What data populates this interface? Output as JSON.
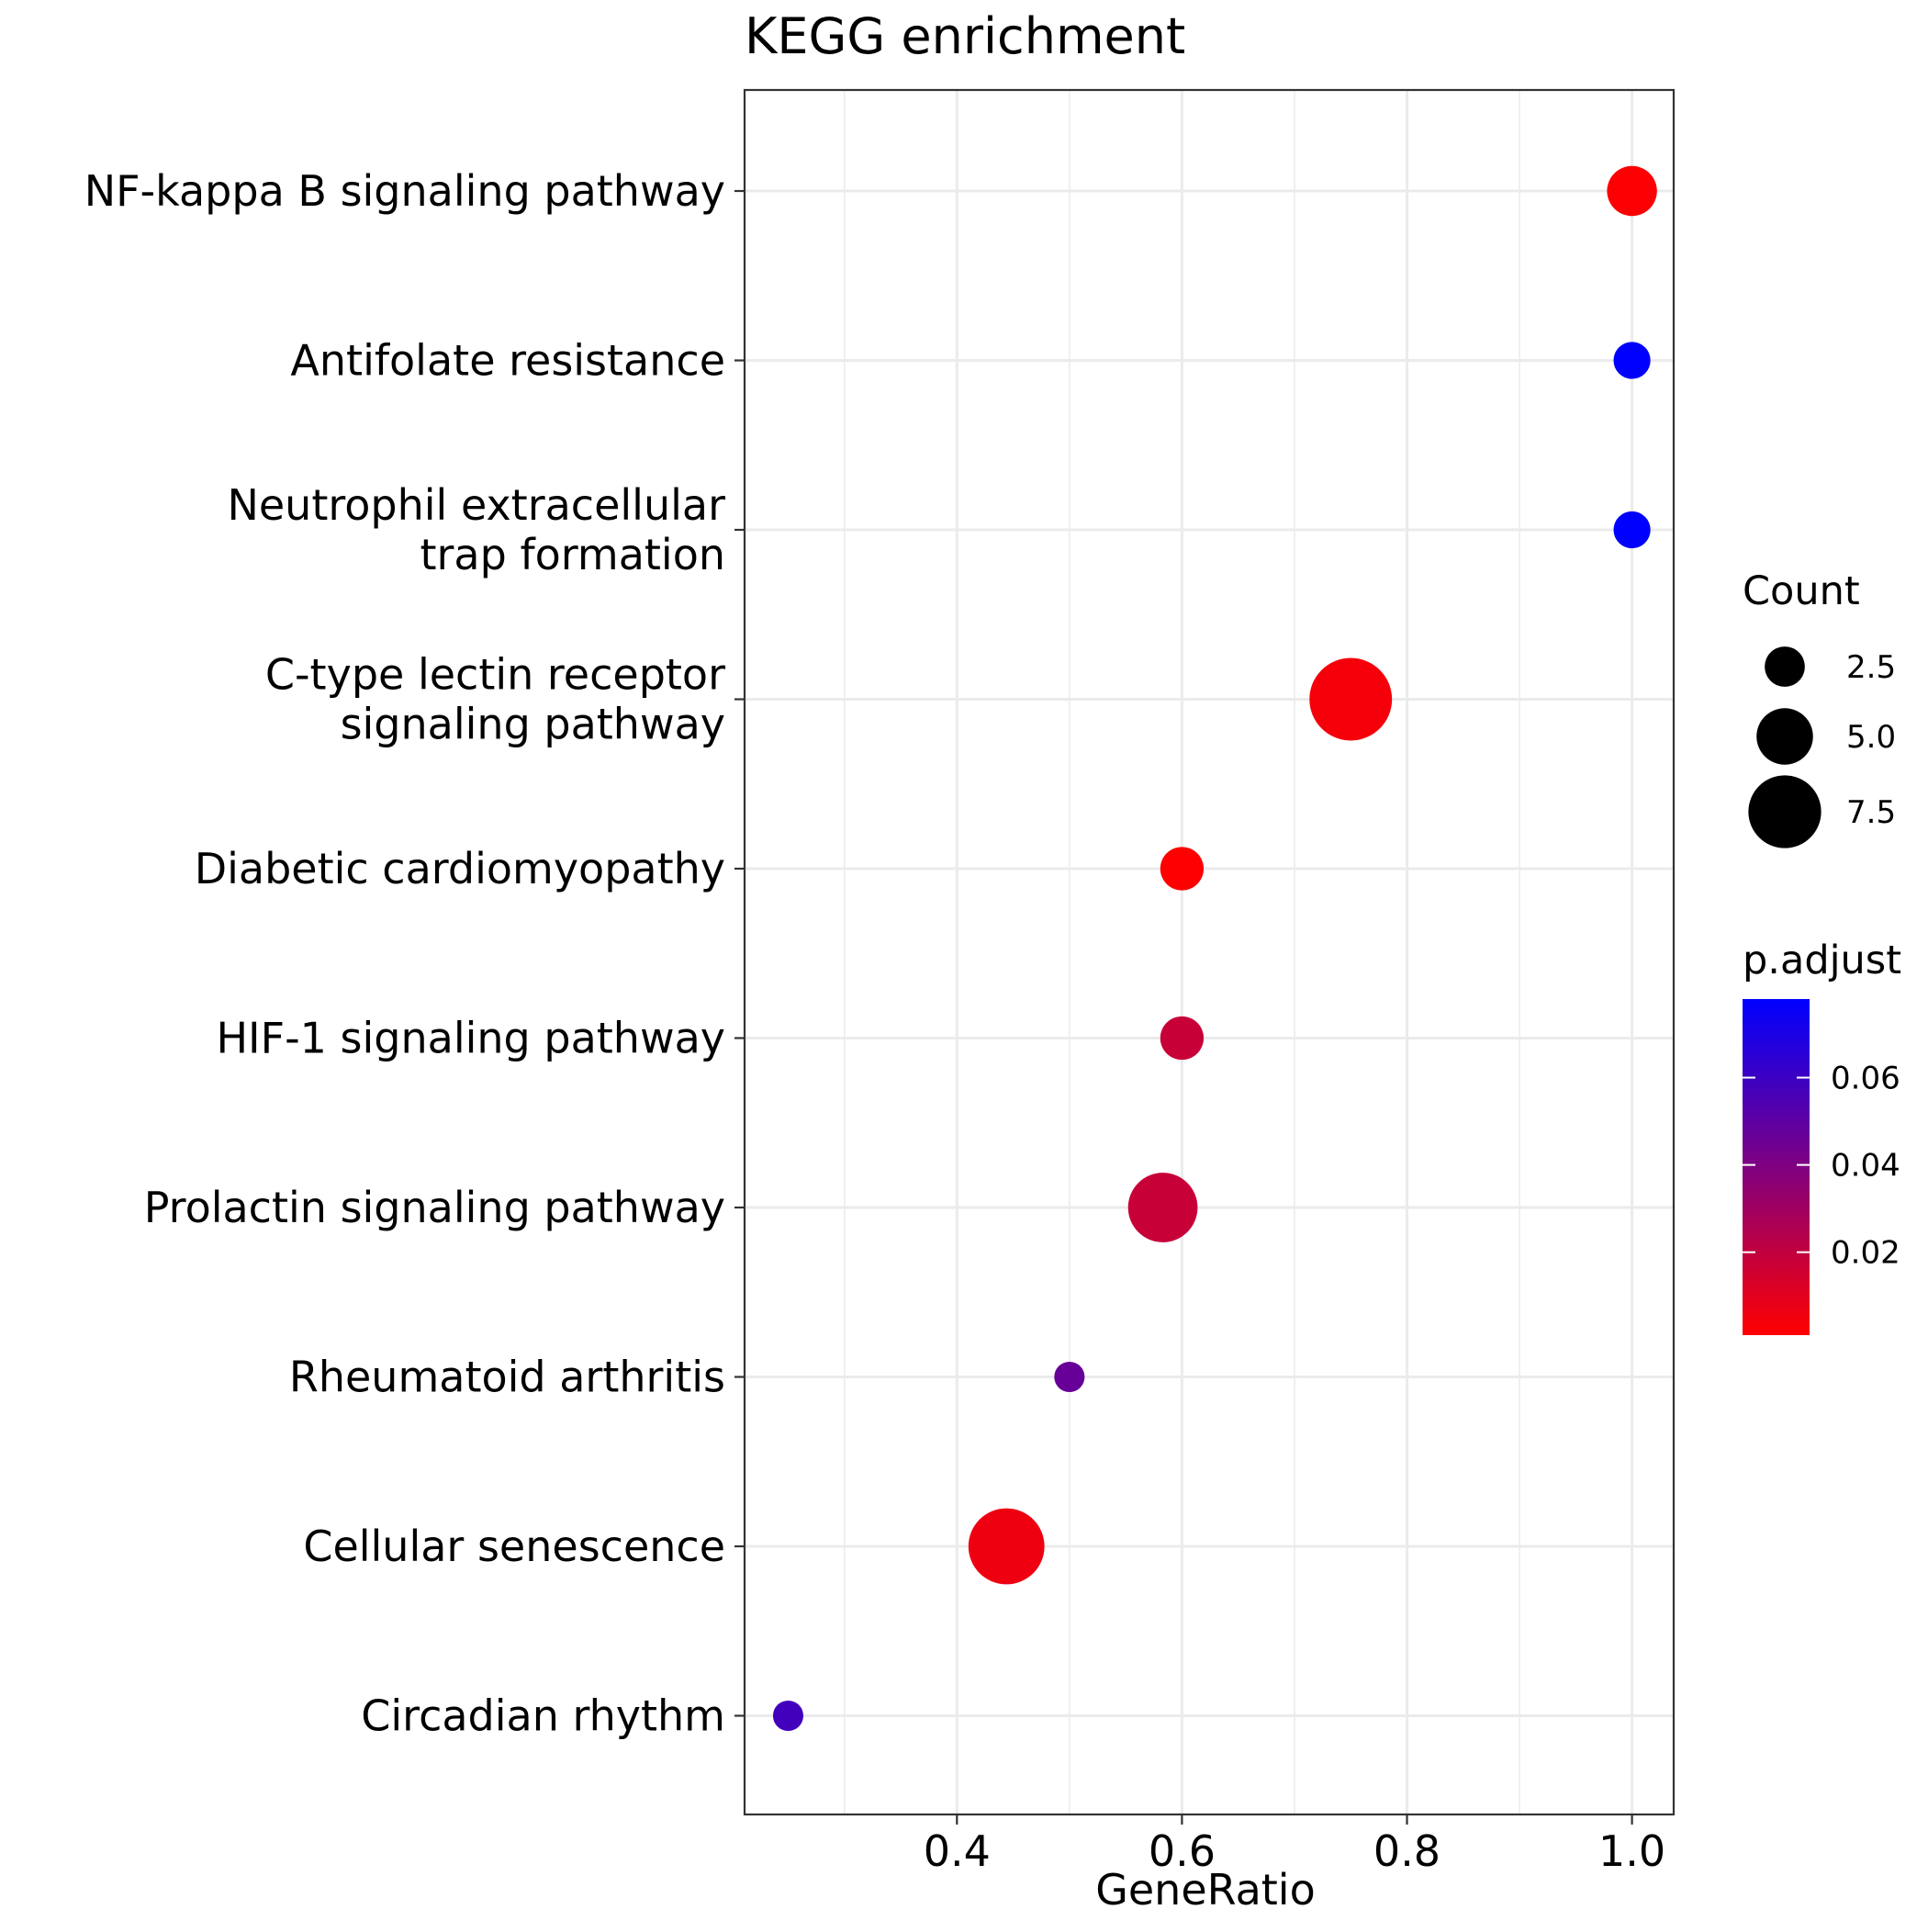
{
  "chart_data": {
    "type": "scatter",
    "title": "KEGG enrichment",
    "xlabel": "GeneRatio",
    "ylabel": "",
    "xlim": [
      0.21,
      1.04
    ],
    "x_ticks": [
      {
        "value": 0.4,
        "label": "0.4"
      },
      {
        "value": 0.6,
        "label": "0.6"
      },
      {
        "value": 0.8,
        "label": "0.8"
      },
      {
        "value": 1.0,
        "label": "1.0"
      }
    ],
    "x_minor_gridlines": [
      0.3,
      0.5,
      0.7,
      0.9
    ],
    "grid": true,
    "points": [
      {
        "category": [
          "NF-kappa B signaling pathway"
        ],
        "gene_ratio": 1.0,
        "count": 4,
        "p_adjust": 0.002
      },
      {
        "category": [
          "Antifolate resistance"
        ],
        "gene_ratio": 1.0,
        "count": 2,
        "p_adjust": 0.078
      },
      {
        "category": [
          "Neutrophil extracellular",
          "trap formation"
        ],
        "gene_ratio": 1.0,
        "count": 2,
        "p_adjust": 0.078
      },
      {
        "category": [
          "C-type lectin receptor",
          "signaling pathway"
        ],
        "gene_ratio": 0.75,
        "count": 9,
        "p_adjust": 0.004
      },
      {
        "category": [
          "Diabetic cardiomyopathy"
        ],
        "gene_ratio": 0.6,
        "count": 3,
        "p_adjust": 0.001
      },
      {
        "category": [
          "HIF-1 signaling pathway"
        ],
        "gene_ratio": 0.6,
        "count": 3,
        "p_adjust": 0.018
      },
      {
        "category": [
          "Prolactin signaling pathway"
        ],
        "gene_ratio": 0.583,
        "count": 7,
        "p_adjust": 0.018
      },
      {
        "category": [
          "Rheumatoid arthritis"
        ],
        "gene_ratio": 0.5,
        "count": 1,
        "p_adjust": 0.047
      },
      {
        "category": [
          "Cellular senescence"
        ],
        "gene_ratio": 0.444,
        "count": 8,
        "p_adjust": 0.006
      },
      {
        "category": [
          "Circadian rhythm"
        ],
        "gene_ratio": 0.25,
        "count": 1,
        "p_adjust": 0.058
      }
    ],
    "size_legend": {
      "title": "Count",
      "entries": [
        {
          "value": 2.5,
          "label": "2.5"
        },
        {
          "value": 5.0,
          "label": "5.0"
        },
        {
          "value": 7.5,
          "label": "7.5"
        }
      ]
    },
    "color_legend": {
      "title": "p.adjust",
      "min": 0.001,
      "max": 0.078,
      "low_color": "#FF0000",
      "high_color": "#0000FF",
      "ticks": [
        {
          "value": 0.02,
          "label": "0.02"
        },
        {
          "value": 0.04,
          "label": "0.04"
        },
        {
          "value": 0.06,
          "label": "0.06"
        }
      ]
    },
    "legend_position": "right"
  }
}
